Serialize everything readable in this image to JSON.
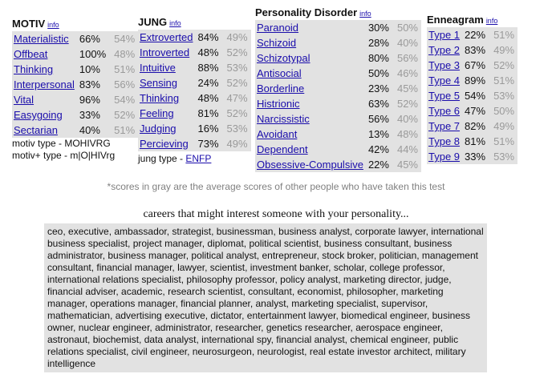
{
  "info_label": "info",
  "motiv": {
    "title": "MOTIV",
    "rows": [
      {
        "name": "Materialistic",
        "value": "66%",
        "avg": "54%"
      },
      {
        "name": "Offbeat",
        "value": "100%",
        "avg": "48%"
      },
      {
        "name": "Thinking",
        "value": "10%",
        "avg": "51%"
      },
      {
        "name": "Interpersonal",
        "value": "83%",
        "avg": "56%"
      },
      {
        "name": "Vital",
        "value": "96%",
        "avg": "54%"
      },
      {
        "name": "Easygoing",
        "value": "33%",
        "avg": "52%"
      },
      {
        "name": "Sectarian",
        "value": "40%",
        "avg": "51%"
      }
    ],
    "type_line": "motiv type - MOHIVRG",
    "plus_type_line": "motiv+ type - m|O|HIVrg"
  },
  "jung": {
    "title": "JUNG",
    "rows": [
      {
        "name": "Extroverted",
        "value": "84%",
        "avg": "49%"
      },
      {
        "name": "Introverted",
        "value": "48%",
        "avg": "52%"
      },
      {
        "name": "Intuitive",
        "value": "88%",
        "avg": "53%"
      },
      {
        "name": "Sensing",
        "value": "24%",
        "avg": "52%"
      },
      {
        "name": "Thinking",
        "value": "48%",
        "avg": "47%"
      },
      {
        "name": "Feeling",
        "value": "81%",
        "avg": "52%"
      },
      {
        "name": "Judging",
        "value": "16%",
        "avg": "53%"
      },
      {
        "name": "Percieving",
        "value": "73%",
        "avg": "49%"
      }
    ],
    "type_prefix": "jung type -",
    "type_value": "ENFP"
  },
  "personality_disorder": {
    "title": "Personality Disorder",
    "rows": [
      {
        "name": "Paranoid",
        "value": "30%",
        "avg": "50%"
      },
      {
        "name": "Schizoid",
        "value": "28%",
        "avg": "40%"
      },
      {
        "name": "Schizotypal",
        "value": "80%",
        "avg": "56%"
      },
      {
        "name": "Antisocial",
        "value": "50%",
        "avg": "46%"
      },
      {
        "name": "Borderline",
        "value": "23%",
        "avg": "45%"
      },
      {
        "name": "Histrionic",
        "value": "63%",
        "avg": "52%"
      },
      {
        "name": "Narcissistic",
        "value": "56%",
        "avg": "40%"
      },
      {
        "name": "Avoidant",
        "value": "13%",
        "avg": "48%"
      },
      {
        "name": "Dependent",
        "value": "42%",
        "avg": "44%"
      },
      {
        "name": "Obsessive-Compulsive",
        "value": "22%",
        "avg": "45%"
      }
    ]
  },
  "enneagram": {
    "title": "Enneagram",
    "rows": [
      {
        "name": "Type 1",
        "value": "22%",
        "avg": "51%"
      },
      {
        "name": "Type 2",
        "value": "83%",
        "avg": "49%"
      },
      {
        "name": "Type 3",
        "value": "67%",
        "avg": "52%"
      },
      {
        "name": "Type 4",
        "value": "89%",
        "avg": "51%"
      },
      {
        "name": "Type 5",
        "value": "54%",
        "avg": "53%"
      },
      {
        "name": "Type 6",
        "value": "47%",
        "avg": "50%"
      },
      {
        "name": "Type 7",
        "value": "82%",
        "avg": "49%"
      },
      {
        "name": "Type 8",
        "value": "81%",
        "avg": "51%"
      },
      {
        "name": "Type 9",
        "value": "33%",
        "avg": "53%"
      }
    ]
  },
  "note": "*scores in gray are the average scores of other people who have taken this test",
  "careers": {
    "title": "careers that might interest someone with your personality...",
    "text": "ceo, executive, ambassador, strategist, businessman, business analyst, corporate lawyer, international business specialist, project manager, diplomat, political scientist, business consultant, business administrator, business manager, political analyst, entrepreneur, stock broker, politician, management consultant, financial manager, lawyer, scientist, investment banker, scholar, college professor, international relations specialist, philosophy professor, policy analyst, marketing director, judge, financial adviser, academic, research scientist, consultant, economist, philosopher, marketing manager, operations manager, financial planner, analyst, marketing specialist, supervisor, mathematician, advertising executive, dictator, entertainment lawyer, biomedical engineer, business owner, nuclear engineer, administrator, researcher, genetics researcher, aerospace engineer, astronaut, biochemist, data analyst, international spy, financial analyst, chemical engineer, public relations specialist, civil engineer, neurosurgeon, neurologist, real estate investor architect, military intelligence"
  },
  "colors": {
    "panel_bg": "#e2e2e2",
    "link": "#1a0dab",
    "avg_text": "#9a9a9a"
  }
}
